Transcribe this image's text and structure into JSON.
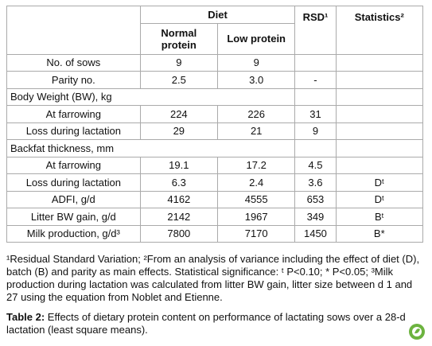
{
  "table": {
    "header": {
      "diet": "Diet",
      "normal": "Normal protein",
      "low": "Low protein",
      "rsd": "RSD¹",
      "stats": "Statistics²"
    },
    "rows": [
      [
        "No. of sows",
        "9",
        "9",
        null,
        null
      ],
      [
        "Parity no.",
        "2.5",
        "3.0",
        "-",
        null
      ],
      [
        "Body Weight (BW), kg"
      ],
      [
        "At farrowing",
        "224",
        "226",
        "31",
        null
      ],
      [
        "Loss during lactation",
        "29",
        "21",
        "9",
        null
      ],
      [
        "Backfat thickness, mm"
      ],
      [
        "At farrowing",
        "19.1",
        "17.2",
        "4.5",
        null
      ],
      [
        "Loss during lactation",
        "6.3",
        "2.4",
        "3.6",
        "Dᵗ"
      ],
      [
        "ADFI, g/d",
        "4162",
        "4555",
        "653",
        "Dᵗ"
      ],
      [
        "Litter BW gain, g/d",
        "2142",
        "1967",
        "349",
        "Bᵗ"
      ],
      [
        "Milk production, g/d³",
        "7800",
        "7170",
        "1450",
        "B*"
      ]
    ]
  },
  "footnote": "¹Residual Standard Variation; ²From an analysis of variance including the effect of diet (D), batch (B) and parity as main effects. Statistical significance: ᵗ P<0.10; * P<0.05; ³Milk production during lactation was calculated from litter BW gain, litter size between d 1 and 27 using the equation from Noblet and Etienne.",
  "caption": {
    "label": "Table 2:",
    "text": "Effects of dietary protein content on performance of lactating sows over a 28-d lactation (least square means)."
  }
}
